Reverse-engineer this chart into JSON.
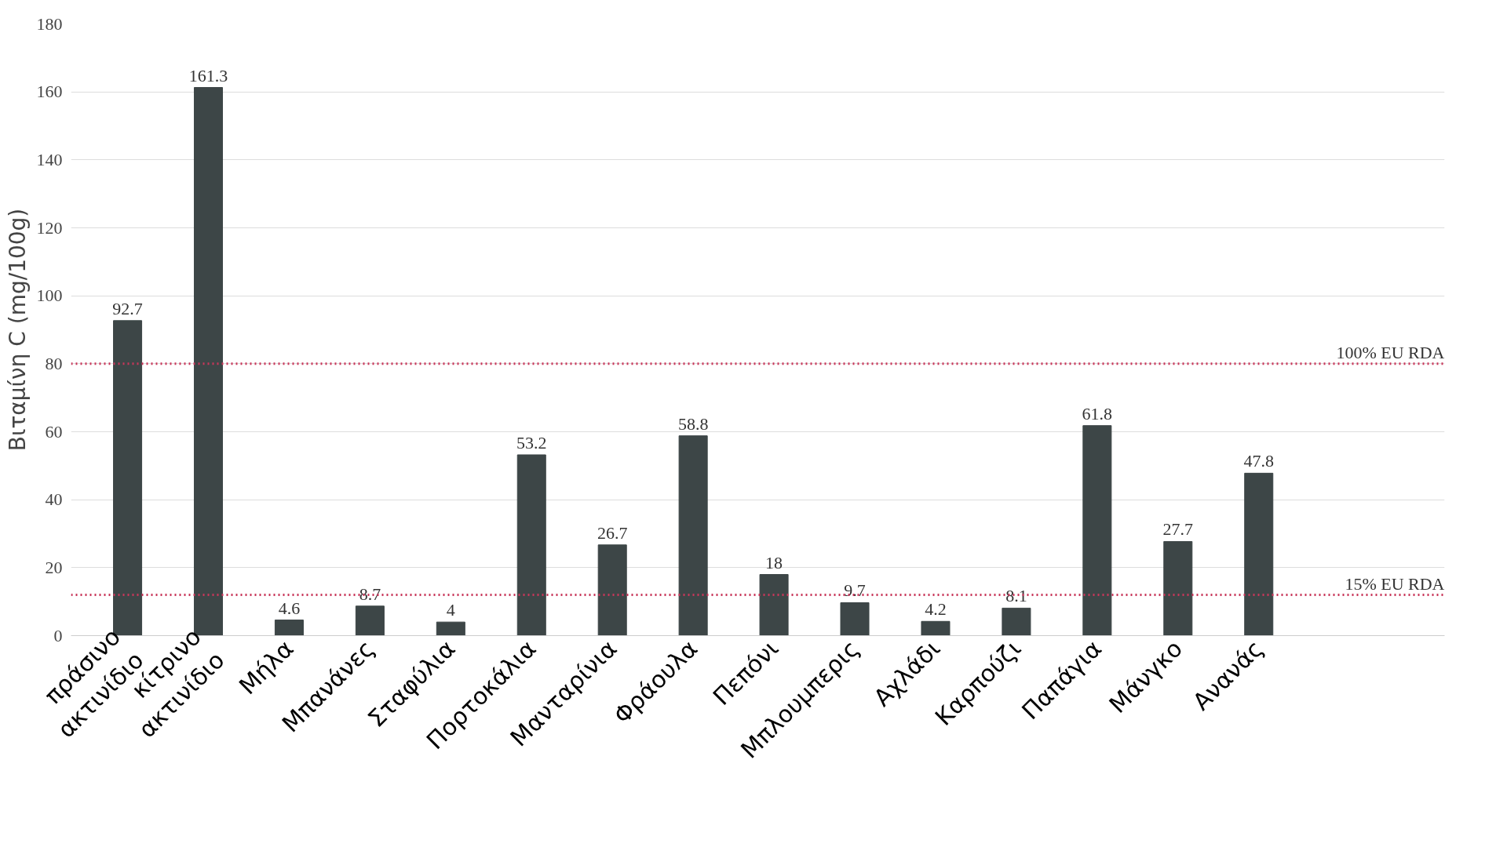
{
  "chart_data": {
    "type": "bar",
    "ylabel": "Βιταμίνη C (mg/100g)",
    "categories": [
      "πράσινο\nακτινίδιο",
      "κίτρινο\nακτινίδιο",
      "Μήλα",
      "Μπανάνες",
      "Σταφύλια",
      "Πορτοκάλια",
      "Μανταρίνια",
      "Φράουλα",
      "Πεπόνι",
      "Μπλουμπερις",
      "Αχλάδι",
      "Καρπούζι",
      "Παπάγια",
      "Μάνγκο",
      "Ανανάς"
    ],
    "values": [
      92.7,
      161.3,
      4.6,
      8.7,
      4,
      53.2,
      26.7,
      58.8,
      18,
      9.7,
      4.2,
      8.1,
      61.8,
      27.7,
      47.8
    ],
    "color": "#3d4647",
    "data_labels": true,
    "ylim": [
      0,
      180
    ],
    "yticks": [
      0,
      20,
      40,
      60,
      80,
      100,
      120,
      140,
      160,
      180
    ],
    "grid": "y",
    "ref_lines": [
      {
        "axis": "y",
        "value": 80,
        "label": "100% EU RDA",
        "color": "#c8375a",
        "line_style": "dotted"
      },
      {
        "axis": "y",
        "value": 12,
        "label": "15% EU RDA",
        "color": "#c8375a",
        "line_style": "dotted"
      }
    ]
  }
}
